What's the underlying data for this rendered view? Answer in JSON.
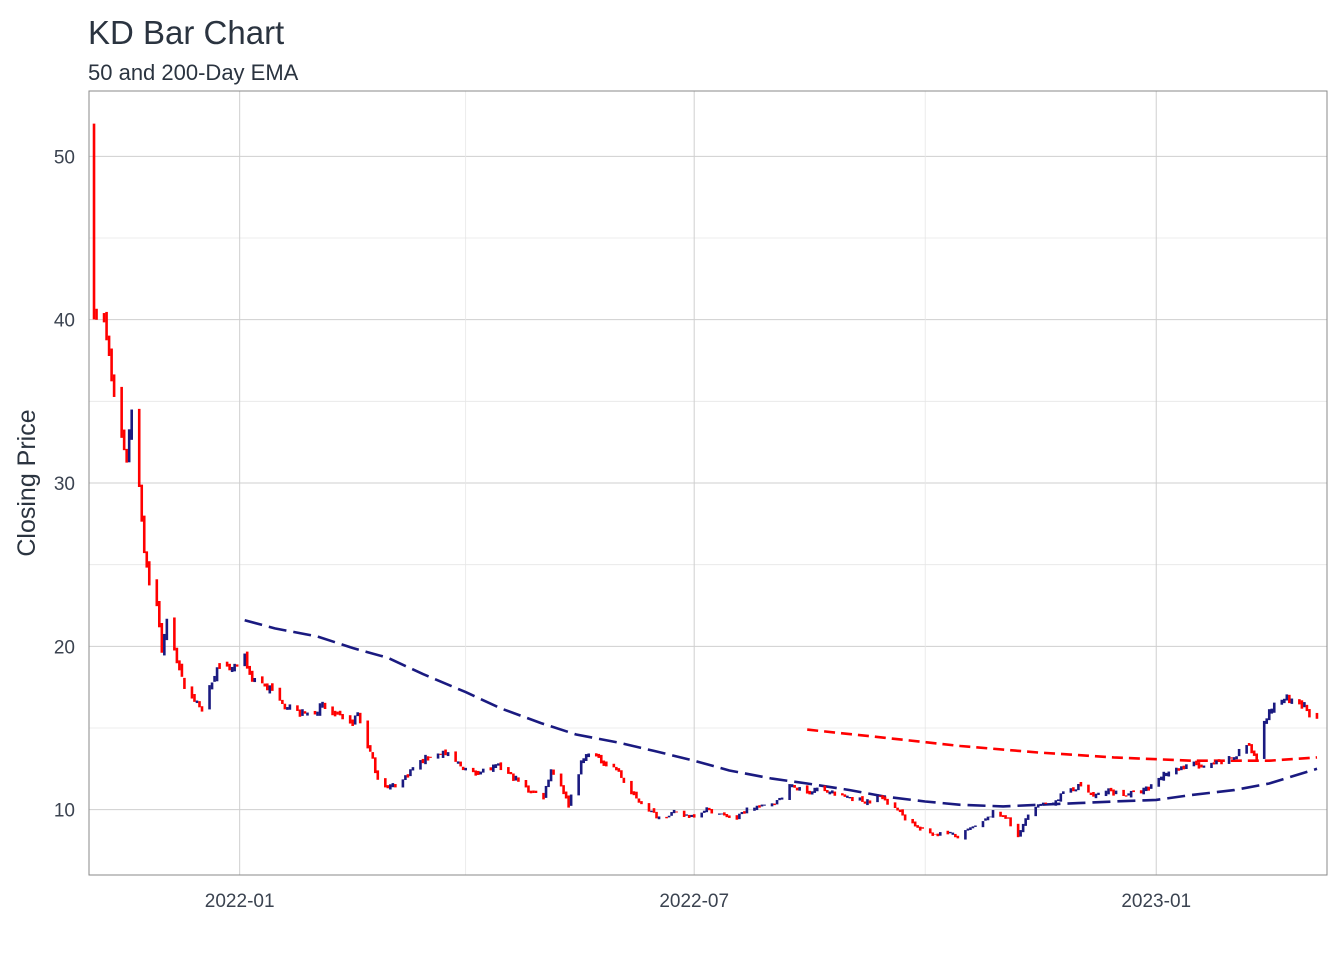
{
  "chart_data": {
    "type": "bar",
    "title": "KD Bar Chart",
    "subtitle": "50 and 200-Day EMA",
    "xlabel": "",
    "ylabel": "Closing Price",
    "x_ticks": [
      "2022-01",
      "2022-07",
      "2023-01"
    ],
    "y_ticks": [
      10,
      20,
      30,
      40,
      50
    ],
    "xlim": [
      "2021-11-02",
      "2023-03-10"
    ],
    "ylim": [
      6,
      54
    ],
    "grid": true,
    "colors": {
      "up": "#1a1a80",
      "down": "#ff0000",
      "ema50": "#ff0000",
      "ema200": "#1a1a80"
    },
    "price_path": [
      [
        "2021-11-04",
        52.0
      ],
      [
        "2021-11-05",
        40.5
      ],
      [
        "2021-11-08",
        39.8
      ],
      [
        "2021-11-10",
        37.6
      ],
      [
        "2021-11-12",
        35.5
      ],
      [
        "2021-11-15",
        33.0
      ],
      [
        "2021-11-17",
        31.5
      ],
      [
        "2021-11-19",
        34.5
      ],
      [
        "2021-11-22",
        30.0
      ],
      [
        "2021-11-24",
        26.0
      ],
      [
        "2021-11-26",
        24.0
      ],
      [
        "2021-11-29",
        22.5
      ],
      [
        "2021-12-01",
        19.8
      ],
      [
        "2021-12-03",
        21.5
      ],
      [
        "2021-12-06",
        20.0
      ],
      [
        "2021-12-08",
        18.5
      ],
      [
        "2021-12-10",
        17.5
      ],
      [
        "2021-12-13",
        17.0
      ],
      [
        "2021-12-15",
        16.5
      ],
      [
        "2021-12-17",
        16.0
      ],
      [
        "2021-12-20",
        17.5
      ],
      [
        "2021-12-22",
        18.0
      ],
      [
        "2021-12-24",
        19.0
      ],
      [
        "2021-12-28",
        18.5
      ],
      [
        "2022-01-03",
        19.2
      ],
      [
        "2022-01-06",
        18.0
      ],
      [
        "2022-01-10",
        17.8
      ],
      [
        "2022-01-14",
        17.2
      ],
      [
        "2022-01-19",
        16.5
      ],
      [
        "2022-01-24",
        16.0
      ],
      [
        "2022-01-28",
        15.8
      ],
      [
        "2022-02-03",
        16.3
      ],
      [
        "2022-02-09",
        15.7
      ],
      [
        "2022-02-14",
        15.2
      ],
      [
        "2022-02-17",
        15.8
      ],
      [
        "2022-02-22",
        13.5
      ],
      [
        "2022-02-25",
        12.0
      ],
      [
        "2022-03-01",
        11.3
      ],
      [
        "2022-03-07",
        11.8
      ],
      [
        "2022-03-11",
        12.5
      ],
      [
        "2022-03-17",
        13.2
      ],
      [
        "2022-03-23",
        13.5
      ],
      [
        "2022-03-29",
        12.8
      ],
      [
        "2022-04-04",
        12.2
      ],
      [
        "2022-04-08",
        12.4
      ],
      [
        "2022-04-14",
        12.6
      ],
      [
        "2022-04-20",
        12.0
      ],
      [
        "2022-04-26",
        11.2
      ],
      [
        "2022-05-02",
        10.8
      ],
      [
        "2022-05-05",
        12.5
      ],
      [
        "2022-05-09",
        11.5
      ],
      [
        "2022-05-12",
        10.3
      ],
      [
        "2022-05-17",
        12.8
      ],
      [
        "2022-05-20",
        13.5
      ],
      [
        "2022-05-25",
        13.0
      ],
      [
        "2022-05-31",
        12.5
      ],
      [
        "2022-06-06",
        11.0
      ],
      [
        "2022-06-13",
        10.0
      ],
      [
        "2022-06-17",
        9.5
      ],
      [
        "2022-06-23",
        9.8
      ],
      [
        "2022-06-29",
        9.6
      ],
      [
        "2022-07-06",
        10.0
      ],
      [
        "2022-07-12",
        9.7
      ],
      [
        "2022-07-18",
        9.5
      ],
      [
        "2022-07-22",
        10.0
      ],
      [
        "2022-07-28",
        10.2
      ],
      [
        "2022-08-03",
        10.5
      ],
      [
        "2022-08-09",
        11.5
      ],
      [
        "2022-08-15",
        11.0
      ],
      [
        "2022-08-19",
        11.3
      ],
      [
        "2022-08-25",
        11.0
      ],
      [
        "2022-08-31",
        10.8
      ],
      [
        "2022-09-07",
        10.5
      ],
      [
        "2022-09-13",
        10.8
      ],
      [
        "2022-09-19",
        10.2
      ],
      [
        "2022-09-23",
        9.5
      ],
      [
        "2022-09-29",
        8.8
      ],
      [
        "2022-10-04",
        8.5
      ],
      [
        "2022-10-10",
        8.6
      ],
      [
        "2022-10-14",
        8.3
      ],
      [
        "2022-10-19",
        8.8
      ],
      [
        "2022-10-24",
        9.2
      ],
      [
        "2022-10-28",
        9.8
      ],
      [
        "2022-11-02",
        9.6
      ],
      [
        "2022-11-07",
        8.3
      ],
      [
        "2022-11-10",
        9.5
      ],
      [
        "2022-11-15",
        10.2
      ],
      [
        "2022-11-21",
        10.5
      ],
      [
        "2022-11-28",
        11.2
      ],
      [
        "2022-12-02",
        11.5
      ],
      [
        "2022-12-07",
        10.8
      ],
      [
        "2022-12-13",
        11.2
      ],
      [
        "2022-12-19",
        10.9
      ],
      [
        "2022-12-23",
        11.0
      ],
      [
        "2022-12-29",
        11.3
      ],
      [
        "2023-01-05",
        12.3
      ],
      [
        "2023-01-10",
        12.5
      ],
      [
        "2023-01-16",
        12.8
      ],
      [
        "2023-01-20",
        12.5
      ],
      [
        "2023-01-26",
        12.9
      ],
      [
        "2023-02-01",
        13.2
      ],
      [
        "2023-02-06",
        14.0
      ],
      [
        "2023-02-10",
        13.2
      ],
      [
        "2023-02-13",
        15.5
      ],
      [
        "2023-02-16",
        16.2
      ],
      [
        "2023-02-21",
        16.8
      ],
      [
        "2023-02-24",
        16.5
      ],
      [
        "2023-03-01",
        16.3
      ],
      [
        "2023-03-06",
        15.5
      ]
    ],
    "ema50": [
      [
        "2022-08-15",
        14.9
      ],
      [
        "2022-09-15",
        14.4
      ],
      [
        "2022-10-15",
        13.9
      ],
      [
        "2022-11-15",
        13.5
      ],
      [
        "2022-12-15",
        13.2
      ],
      [
        "2023-01-15",
        13.0
      ],
      [
        "2023-02-15",
        13.0
      ],
      [
        "2023-03-06",
        13.2
      ]
    ],
    "ema200": [
      [
        "2022-01-03",
        21.6
      ],
      [
        "2022-01-15",
        21.1
      ],
      [
        "2022-02-01",
        20.6
      ],
      [
        "2022-02-15",
        19.9
      ],
      [
        "2022-03-01",
        19.3
      ],
      [
        "2022-03-15",
        18.3
      ],
      [
        "2022-04-01",
        17.2
      ],
      [
        "2022-04-15",
        16.2
      ],
      [
        "2022-05-01",
        15.3
      ],
      [
        "2022-05-15",
        14.6
      ],
      [
        "2022-06-01",
        14.1
      ],
      [
        "2022-06-15",
        13.6
      ],
      [
        "2022-07-01",
        13.0
      ],
      [
        "2022-07-15",
        12.4
      ],
      [
        "2022-08-01",
        11.9
      ],
      [
        "2022-08-15",
        11.6
      ],
      [
        "2022-09-01",
        11.2
      ],
      [
        "2022-09-15",
        10.8
      ],
      [
        "2022-10-01",
        10.5
      ],
      [
        "2022-10-15",
        10.3
      ],
      [
        "2022-11-01",
        10.2
      ],
      [
        "2022-11-15",
        10.3
      ],
      [
        "2022-12-01",
        10.4
      ],
      [
        "2022-12-15",
        10.5
      ],
      [
        "2023-01-01",
        10.6
      ],
      [
        "2023-01-15",
        10.9
      ],
      [
        "2023-02-01",
        11.2
      ],
      [
        "2023-02-15",
        11.6
      ],
      [
        "2023-03-06",
        12.5
      ]
    ]
  }
}
